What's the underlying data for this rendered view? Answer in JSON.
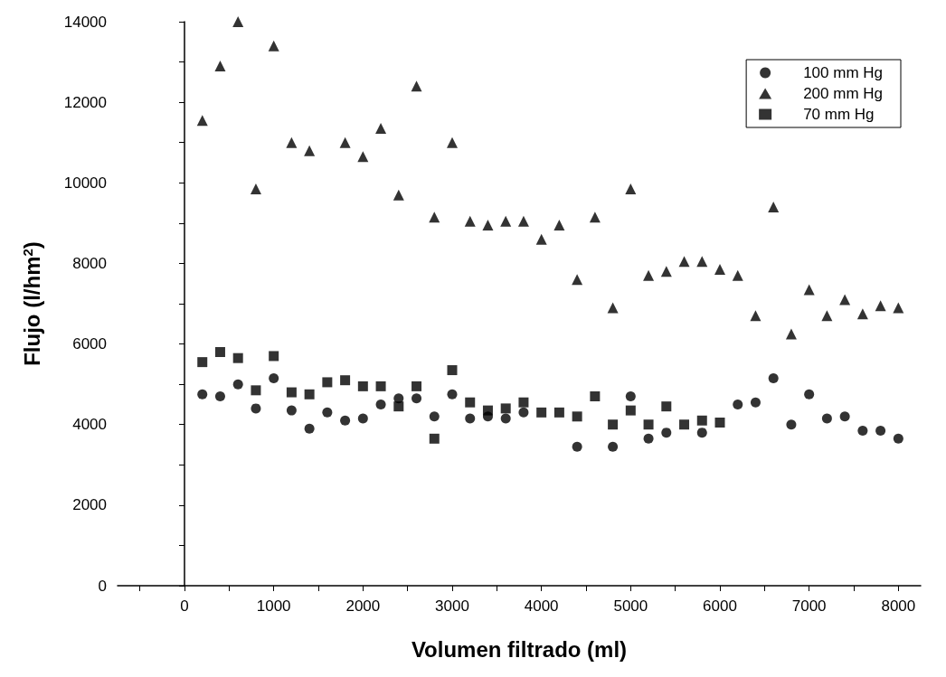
{
  "chart_data": {
    "type": "scatter",
    "xlabel": "Volumen filtrado (ml)",
    "ylabel": "Flujo (l/hm$^{2}$)",
    "xlim": [
      -750,
      8250
    ],
    "ylim": [
      0,
      14000
    ],
    "xticks": [
      {
        "value": -500,
        "label": null
      },
      0,
      {
        "value": 500,
        "label": null
      },
      1000,
      {
        "value": 1500,
        "label": null
      },
      2000,
      {
        "value": 2500,
        "label": null
      },
      3000,
      {
        "value": 3500,
        "label": null
      },
      4000,
      {
        "value": 4500,
        "label": null
      },
      5000,
      {
        "value": 5500,
        "label": null
      },
      6000,
      {
        "value": 6500,
        "label": null
      },
      7000,
      {
        "value": 7500,
        "label": null
      },
      8000
    ],
    "yticks": [
      0,
      {
        "value": 1000,
        "label": null
      },
      2000,
      {
        "value": 3000,
        "label": null
      },
      4000,
      {
        "value": 5000,
        "label": null
      },
      6000,
      {
        "value": 7000,
        "label": null
      },
      8000,
      {
        "value": 9000,
        "label": null
      },
      10000,
      {
        "value": 11000,
        "label": null
      },
      12000,
      {
        "value": 13000,
        "label": null
      },
      14000
    ],
    "legend": "top right",
    "series": [
      {
        "name": "100 mm Hg",
        "color": "#000000",
        "marker": "circle",
        "x": [
          200,
          400,
          600,
          800,
          1000,
          1200,
          1400,
          1600,
          1800,
          2000,
          2200,
          2400,
          2600,
          2800,
          3000,
          3200,
          3400,
          3600,
          3800,
          4000,
          4200,
          4400,
          4600,
          4800,
          5000,
          5200,
          5400,
          5800,
          6200,
          6400,
          6600,
          6800,
          7000,
          7200,
          7400,
          7600,
          7800,
          8000
        ],
        "values": [
          4750,
          4700,
          5000,
          4400,
          5150,
          4350,
          3900,
          4300,
          4100,
          4150,
          4500,
          4650,
          4650,
          4200,
          4750,
          4150,
          4200,
          4150,
          4300,
          null,
          null,
          3450,
          null,
          3450,
          4700,
          3650,
          3800,
          3800,
          4500,
          4550,
          5150,
          4000,
          4750,
          4150,
          4200,
          3850,
          3850,
          3650
        ]
      },
      {
        "name": "200 mm Hg",
        "color": "#000000",
        "marker": "triangle",
        "x": [
          200,
          400,
          600,
          800,
          1000,
          1200,
          1400,
          1800,
          2000,
          2200,
          2400,
          2600,
          2800,
          3000,
          3200,
          3400,
          3600,
          3800,
          4000,
          4200,
          4400,
          4600,
          4800,
          5000,
          5200,
          5400,
          5600,
          5800,
          6000,
          6200,
          6400,
          6600,
          6800,
          7000,
          7200,
          7400,
          7600,
          7800,
          8000
        ],
        "values": [
          11550,
          12900,
          14000,
          9850,
          13400,
          11000,
          10800,
          11000,
          10650,
          11350,
          9700,
          12400,
          9150,
          11000,
          9050,
          8950,
          9050,
          9050,
          8600,
          8950,
          7600,
          9150,
          6900,
          9850,
          7700,
          7800,
          8050,
          8050,
          7850,
          7700,
          6700,
          9400,
          6250,
          7350,
          6700,
          7100,
          6750,
          6950,
          6900
        ]
      },
      {
        "name": "70 mm Hg",
        "color": "#000000",
        "marker": "square",
        "x": [
          200,
          400,
          600,
          800,
          1000,
          1200,
          1400,
          1600,
          1800,
          2000,
          2200,
          2400,
          2600,
          2800,
          3000,
          3200,
          3400,
          3600,
          3800,
          4000,
          4200,
          4400,
          4600,
          4800,
          5000,
          5200,
          5400,
          5600,
          5800,
          6000
        ],
        "values": [
          5550,
          5800,
          5650,
          4850,
          5700,
          4800,
          4750,
          5050,
          5100,
          4950,
          4950,
          4450,
          4950,
          3650,
          5350,
          4550,
          4350,
          4400,
          4550,
          4300,
          4300,
          4200,
          4700,
          4000,
          4350,
          4000,
          4450,
          4000,
          4100,
          4050
        ]
      }
    ]
  }
}
